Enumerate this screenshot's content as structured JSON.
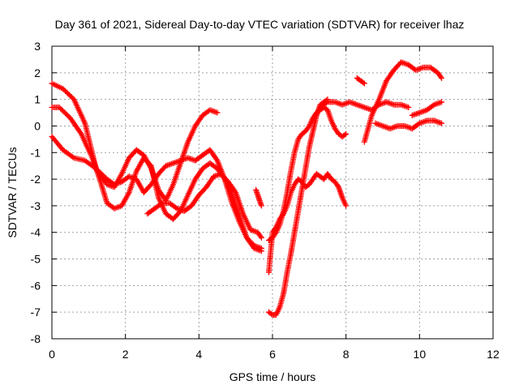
{
  "colors": {
    "series": "#ff0000",
    "grid": "#a0a0a0",
    "frame": "#000000",
    "background": "#ffffff"
  },
  "chart_data": {
    "type": "scatter",
    "marker": "plus",
    "title": "Day 361 of 2021, Sidereal Day-to-day VTEC variation (SDTVAR) for receiver lhaz",
    "xlabel": "GPS time / hours",
    "ylabel": "SDTVAR / TECUs",
    "xlim": [
      0,
      12
    ],
    "ylim": [
      -8,
      3
    ],
    "xticks": [
      0,
      2,
      4,
      6,
      8,
      10,
      12
    ],
    "yticks": [
      -8,
      -7,
      -6,
      -5,
      -4,
      -3,
      -2,
      -1,
      0,
      1,
      2,
      3
    ],
    "grid": true,
    "legend": "none",
    "series": [
      {
        "x": [
          0.0,
          0.3,
          0.6,
          0.9,
          1.2,
          1.5,
          1.7,
          1.9,
          2.1,
          2.3,
          2.5,
          2.7,
          2.9,
          3.1,
          3.3,
          3.5,
          3.7,
          3.9,
          4.1,
          4.3,
          4.5
        ],
        "y": [
          1.6,
          1.4,
          1.0,
          0.1,
          -1.6,
          -2.2,
          -2.3,
          -1.8,
          -1.2,
          -0.9,
          -1.1,
          -1.6,
          -2.4,
          -2.8,
          -2.2,
          -1.4,
          -0.6,
          0.0,
          0.4,
          0.6,
          0.5
        ]
      },
      {
        "x": [
          0.0,
          0.2,
          0.5,
          0.8,
          1.1,
          1.3,
          1.5,
          1.7,
          1.9,
          2.1,
          2.3,
          2.5,
          2.7,
          2.9,
          3.1,
          3.3,
          3.5,
          3.7,
          3.9,
          4.1,
          4.3,
          4.5,
          4.7,
          4.9,
          5.1,
          5.3,
          5.5,
          5.7
        ],
        "y": [
          0.7,
          0.7,
          0.3,
          -0.3,
          -1.2,
          -2.0,
          -2.9,
          -3.1,
          -3.0,
          -2.5,
          -1.7,
          -1.2,
          -1.5,
          -2.7,
          -3.3,
          -3.5,
          -3.2,
          -2.6,
          -2.0,
          -1.6,
          -1.4,
          -1.6,
          -2.0,
          -2.6,
          -3.4,
          -4.2,
          -4.6,
          -4.7
        ]
      },
      {
        "x": [
          0.0,
          0.3,
          0.6,
          0.9,
          1.2,
          1.5,
          1.7,
          1.9,
          2.1,
          2.3,
          2.5,
          2.7,
          2.9,
          3.1,
          3.3,
          3.5,
          3.7,
          3.9,
          4.1,
          4.3,
          4.5,
          4.7,
          4.9,
          5.1,
          5.3,
          5.5,
          5.7
        ],
        "y": [
          -0.4,
          -0.9,
          -1.2,
          -1.3,
          -1.6,
          -2.0,
          -2.2,
          -2.1,
          -1.9,
          -2.0,
          -2.5,
          -2.2,
          -1.8,
          -1.5,
          -1.4,
          -1.3,
          -1.2,
          -1.3,
          -1.1,
          -0.9,
          -1.3,
          -2.0,
          -2.9,
          -3.6,
          -4.2,
          -4.5,
          -4.6
        ]
      },
      {
        "x": [
          2.6,
          2.8,
          3.0,
          3.2,
          3.4,
          3.6,
          3.8,
          4.0,
          4.2,
          4.4,
          4.6,
          4.8,
          5.0,
          5.2,
          5.4,
          5.6,
          5.7
        ],
        "y": [
          -3.3,
          -3.1,
          -2.9,
          -2.9,
          -3.1,
          -3.2,
          -3.0,
          -2.6,
          -2.3,
          -1.9,
          -1.8,
          -2.1,
          -2.5,
          -3.3,
          -3.9,
          -4.0,
          -4.2
        ]
      },
      {
        "x": [
          5.55,
          5.6,
          5.65,
          5.7
        ],
        "y": [
          -2.4,
          -2.6,
          -2.8,
          -3.0
        ]
      },
      {
        "x": [
          5.9,
          6.0,
          6.1,
          6.2,
          6.3,
          6.4,
          6.5,
          6.6,
          6.7,
          6.8,
          6.9,
          7.0,
          7.1,
          7.2,
          7.3,
          7.4,
          7.5,
          7.6,
          7.7,
          7.8,
          7.9,
          8.0
        ],
        "y": [
          -5.5,
          -4.0,
          -3.8,
          -3.5,
          -3.3,
          -3.0,
          -2.5,
          -2.2,
          -2.0,
          -2.1,
          -2.3,
          -2.2,
          -2.0,
          -1.8,
          -1.9,
          -2.0,
          -1.8,
          -2.0,
          -2.1,
          -2.3,
          -2.7,
          -3.0
        ]
      },
      {
        "x": [
          5.9,
          6.0,
          6.1,
          6.2,
          6.3,
          6.4,
          6.5,
          6.6,
          6.7,
          6.8,
          6.9,
          7.0,
          7.1,
          7.2,
          7.3,
          7.4,
          7.5
        ],
        "y": [
          -7.0,
          -7.1,
          -7.1,
          -6.8,
          -6.3,
          -5.5,
          -4.8,
          -4.0,
          -3.2,
          -2.4,
          -1.6,
          -0.8,
          -0.2,
          0.4,
          0.8,
          0.9,
          1.0
        ]
      },
      {
        "x": [
          5.9,
          6.0,
          6.1,
          6.2,
          6.3,
          6.4,
          6.5,
          6.6,
          6.7,
          6.8,
          6.9,
          7.0,
          7.1,
          7.2,
          7.3,
          7.4,
          7.5,
          7.6,
          7.7,
          7.8,
          7.9,
          8.0
        ],
        "y": [
          -4.3,
          -4.2,
          -4.0,
          -3.7,
          -3.2,
          -2.5,
          -1.7,
          -1.0,
          -0.5,
          -0.3,
          -0.2,
          0.0,
          0.3,
          0.5,
          0.6,
          0.7,
          0.6,
          0.2,
          -0.1,
          -0.3,
          -0.4,
          -0.3
        ]
      },
      {
        "x": [
          7.3,
          7.5,
          7.7,
          7.9,
          8.1,
          8.3,
          8.5,
          8.7,
          8.9,
          9.1,
          9.3,
          9.5,
          9.7
        ],
        "y": [
          0.7,
          0.9,
          0.9,
          0.8,
          0.9,
          0.8,
          0.7,
          0.6,
          0.8,
          0.9,
          0.8,
          0.8,
          0.7
        ]
      },
      {
        "x": [
          8.3,
          8.4,
          8.5
        ],
        "y": [
          1.8,
          1.7,
          1.6
        ]
      },
      {
        "x": [
          8.5,
          8.7,
          8.9,
          9.1,
          9.3,
          9.5,
          9.7,
          9.9,
          10.1,
          10.3,
          10.5,
          10.6
        ],
        "y": [
          -0.6,
          0.4,
          1.0,
          1.7,
          2.1,
          2.4,
          2.3,
          2.1,
          2.2,
          2.2,
          2.0,
          1.8
        ]
      },
      {
        "x": [
          8.8,
          9.0,
          9.2,
          9.4,
          9.6,
          9.8,
          10.0,
          10.2,
          10.4,
          10.6
        ],
        "y": [
          0.1,
          0.0,
          -0.1,
          0.0,
          0.0,
          -0.1,
          0.1,
          0.2,
          0.2,
          0.1
        ]
      },
      {
        "x": [
          9.8,
          10.0,
          10.2,
          10.4,
          10.6
        ],
        "y": [
          0.4,
          0.5,
          0.6,
          0.8,
          0.9
        ]
      }
    ]
  }
}
